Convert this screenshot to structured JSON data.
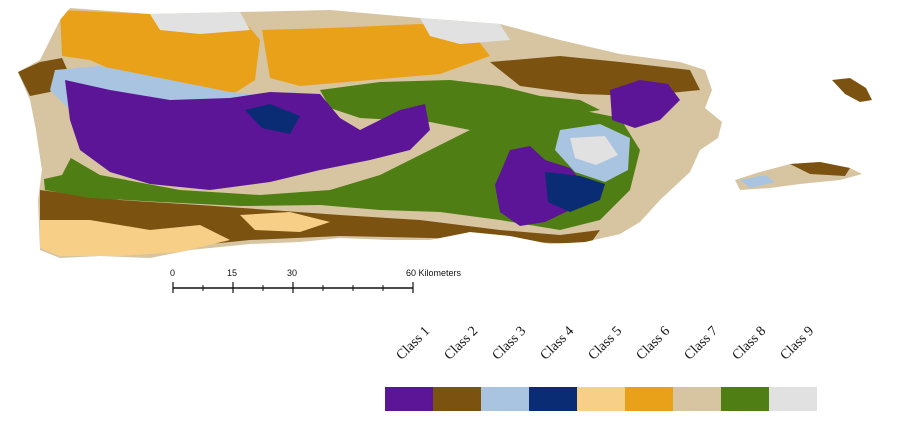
{
  "map": {
    "class_colors": {
      "class_1": "#5b1596",
      "class_2": "#7b5210",
      "class_3": "#a8c4e0",
      "class_4": "#0a2c74",
      "class_5": "#f7cf87",
      "class_6": "#eaa11a",
      "class_7": "#d7c4a0",
      "class_8": "#4f7f14",
      "class_9": "#e1e1e1"
    }
  },
  "scale_bar": {
    "ticks": [
      "0",
      "15",
      "30",
      "60 Kilometers"
    ]
  },
  "legend": {
    "items": [
      {
        "label": "Class 1",
        "color": "#5b1596"
      },
      {
        "label": "Class 2",
        "color": "#7b5210"
      },
      {
        "label": "Class 3",
        "color": "#a8c4e0"
      },
      {
        "label": "Class 4",
        "color": "#0a2c74"
      },
      {
        "label": "Class 5",
        "color": "#f7cf87"
      },
      {
        "label": "Class 6",
        "color": "#eaa11a"
      },
      {
        "label": "Class 7",
        "color": "#d7c4a0"
      },
      {
        "label": "Class 8",
        "color": "#4f7f14"
      },
      {
        "label": "Class 9",
        "color": "#e1e1e1"
      }
    ]
  }
}
